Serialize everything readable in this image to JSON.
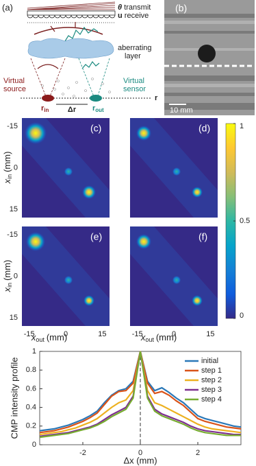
{
  "panel_a": {
    "label": "(a)",
    "theta": "θ",
    "transmit": "transmit",
    "u": "u",
    "receive": "receive",
    "layer": [
      "aberrating",
      "layer"
    ],
    "source": [
      "Virtual",
      "source"
    ],
    "sensor": [
      "Virtual",
      "sensor"
    ],
    "r_in": {
      "main": "r",
      "sub": "in"
    },
    "delta_r": "Δr",
    "r_out": {
      "main": "r",
      "sub": "out"
    },
    "r_axis": "r"
  },
  "panel_b": {
    "label": "(b)",
    "scale_bar": "10 mm"
  },
  "chart_data": [
    {
      "type": "heatmap",
      "panels": [
        "(c)",
        "(d)",
        "(e)",
        "(f)"
      ],
      "xlabel": {
        "var": "x",
        "sub": "out",
        "unit": "(mm)"
      },
      "ylabel": {
        "var": "x",
        "sub": "in",
        "unit": "(mm)"
      },
      "xlim": [
        -18,
        18
      ],
      "ylim": [
        -18,
        18
      ],
      "xticks": [
        -15,
        0,
        15
      ],
      "yticks": [
        -15,
        0,
        15
      ],
      "clim": [
        0,
        1
      ],
      "cticks": [
        0,
        0.5,
        1
      ],
      "colormap": "parula"
    },
    {
      "type": "line",
      "x": [
        -3.5,
        -3.25,
        -3,
        -2.75,
        -2.5,
        -2.25,
        -2,
        -1.75,
        -1.5,
        -1.25,
        -1,
        -0.75,
        -0.5,
        -0.25,
        0,
        0.25,
        0.5,
        0.75,
        1,
        1.25,
        1.5,
        1.75,
        2,
        2.25,
        2.5,
        2.75,
        3,
        3.25,
        3.5
      ],
      "series": [
        {
          "name": "initial",
          "color": "#2a78b8",
          "values": [
            0.15,
            0.16,
            0.17,
            0.19,
            0.21,
            0.24,
            0.27,
            0.31,
            0.36,
            0.45,
            0.53,
            0.58,
            0.6,
            0.68,
            1,
            0.68,
            0.58,
            0.61,
            0.56,
            0.5,
            0.45,
            0.38,
            0.31,
            0.28,
            0.26,
            0.24,
            0.22,
            0.2,
            0.19
          ]
        },
        {
          "name": "step 1",
          "color": "#d95319",
          "values": [
            0.13,
            0.14,
            0.15,
            0.17,
            0.19,
            0.22,
            0.25,
            0.29,
            0.34,
            0.43,
            0.52,
            0.57,
            0.58,
            0.66,
            1,
            0.66,
            0.55,
            0.57,
            0.53,
            0.47,
            0.42,
            0.35,
            0.28,
            0.25,
            0.23,
            0.21,
            0.19,
            0.18,
            0.17
          ]
        },
        {
          "name": "step 2",
          "color": "#edb120",
          "values": [
            0.11,
            0.12,
            0.13,
            0.14,
            0.16,
            0.18,
            0.21,
            0.24,
            0.28,
            0.34,
            0.4,
            0.45,
            0.48,
            0.58,
            1,
            0.58,
            0.45,
            0.42,
            0.38,
            0.34,
            0.3,
            0.26,
            0.22,
            0.19,
            0.17,
            0.16,
            0.15,
            0.14,
            0.13
          ]
        },
        {
          "name": "step 3",
          "color": "#7e2f8e",
          "values": [
            0.09,
            0.1,
            0.11,
            0.12,
            0.13,
            0.15,
            0.17,
            0.19,
            0.22,
            0.27,
            0.32,
            0.36,
            0.4,
            0.52,
            1,
            0.52,
            0.38,
            0.33,
            0.3,
            0.27,
            0.24,
            0.2,
            0.17,
            0.15,
            0.14,
            0.13,
            0.12,
            0.11,
            0.11
          ]
        },
        {
          "name": "step 4",
          "color": "#77ac30",
          "values": [
            0.08,
            0.09,
            0.1,
            0.11,
            0.12,
            0.14,
            0.16,
            0.18,
            0.21,
            0.25,
            0.3,
            0.34,
            0.38,
            0.5,
            1,
            0.5,
            0.36,
            0.31,
            0.28,
            0.25,
            0.22,
            0.18,
            0.15,
            0.13,
            0.12,
            0.11,
            0.1,
            0.1,
            0.1
          ]
        }
      ],
      "xlim": [
        -3.5,
        3.5
      ],
      "xticks": [
        -2,
        0,
        2
      ],
      "ylim": [
        0,
        1
      ],
      "yticks": [
        0,
        0.2,
        0.4,
        0.6,
        0.8,
        1
      ],
      "xlabel": "Δx (mm)",
      "ylabel": "CMP intensity profile",
      "legend": "upper-right",
      "vline_x": 0
    }
  ]
}
